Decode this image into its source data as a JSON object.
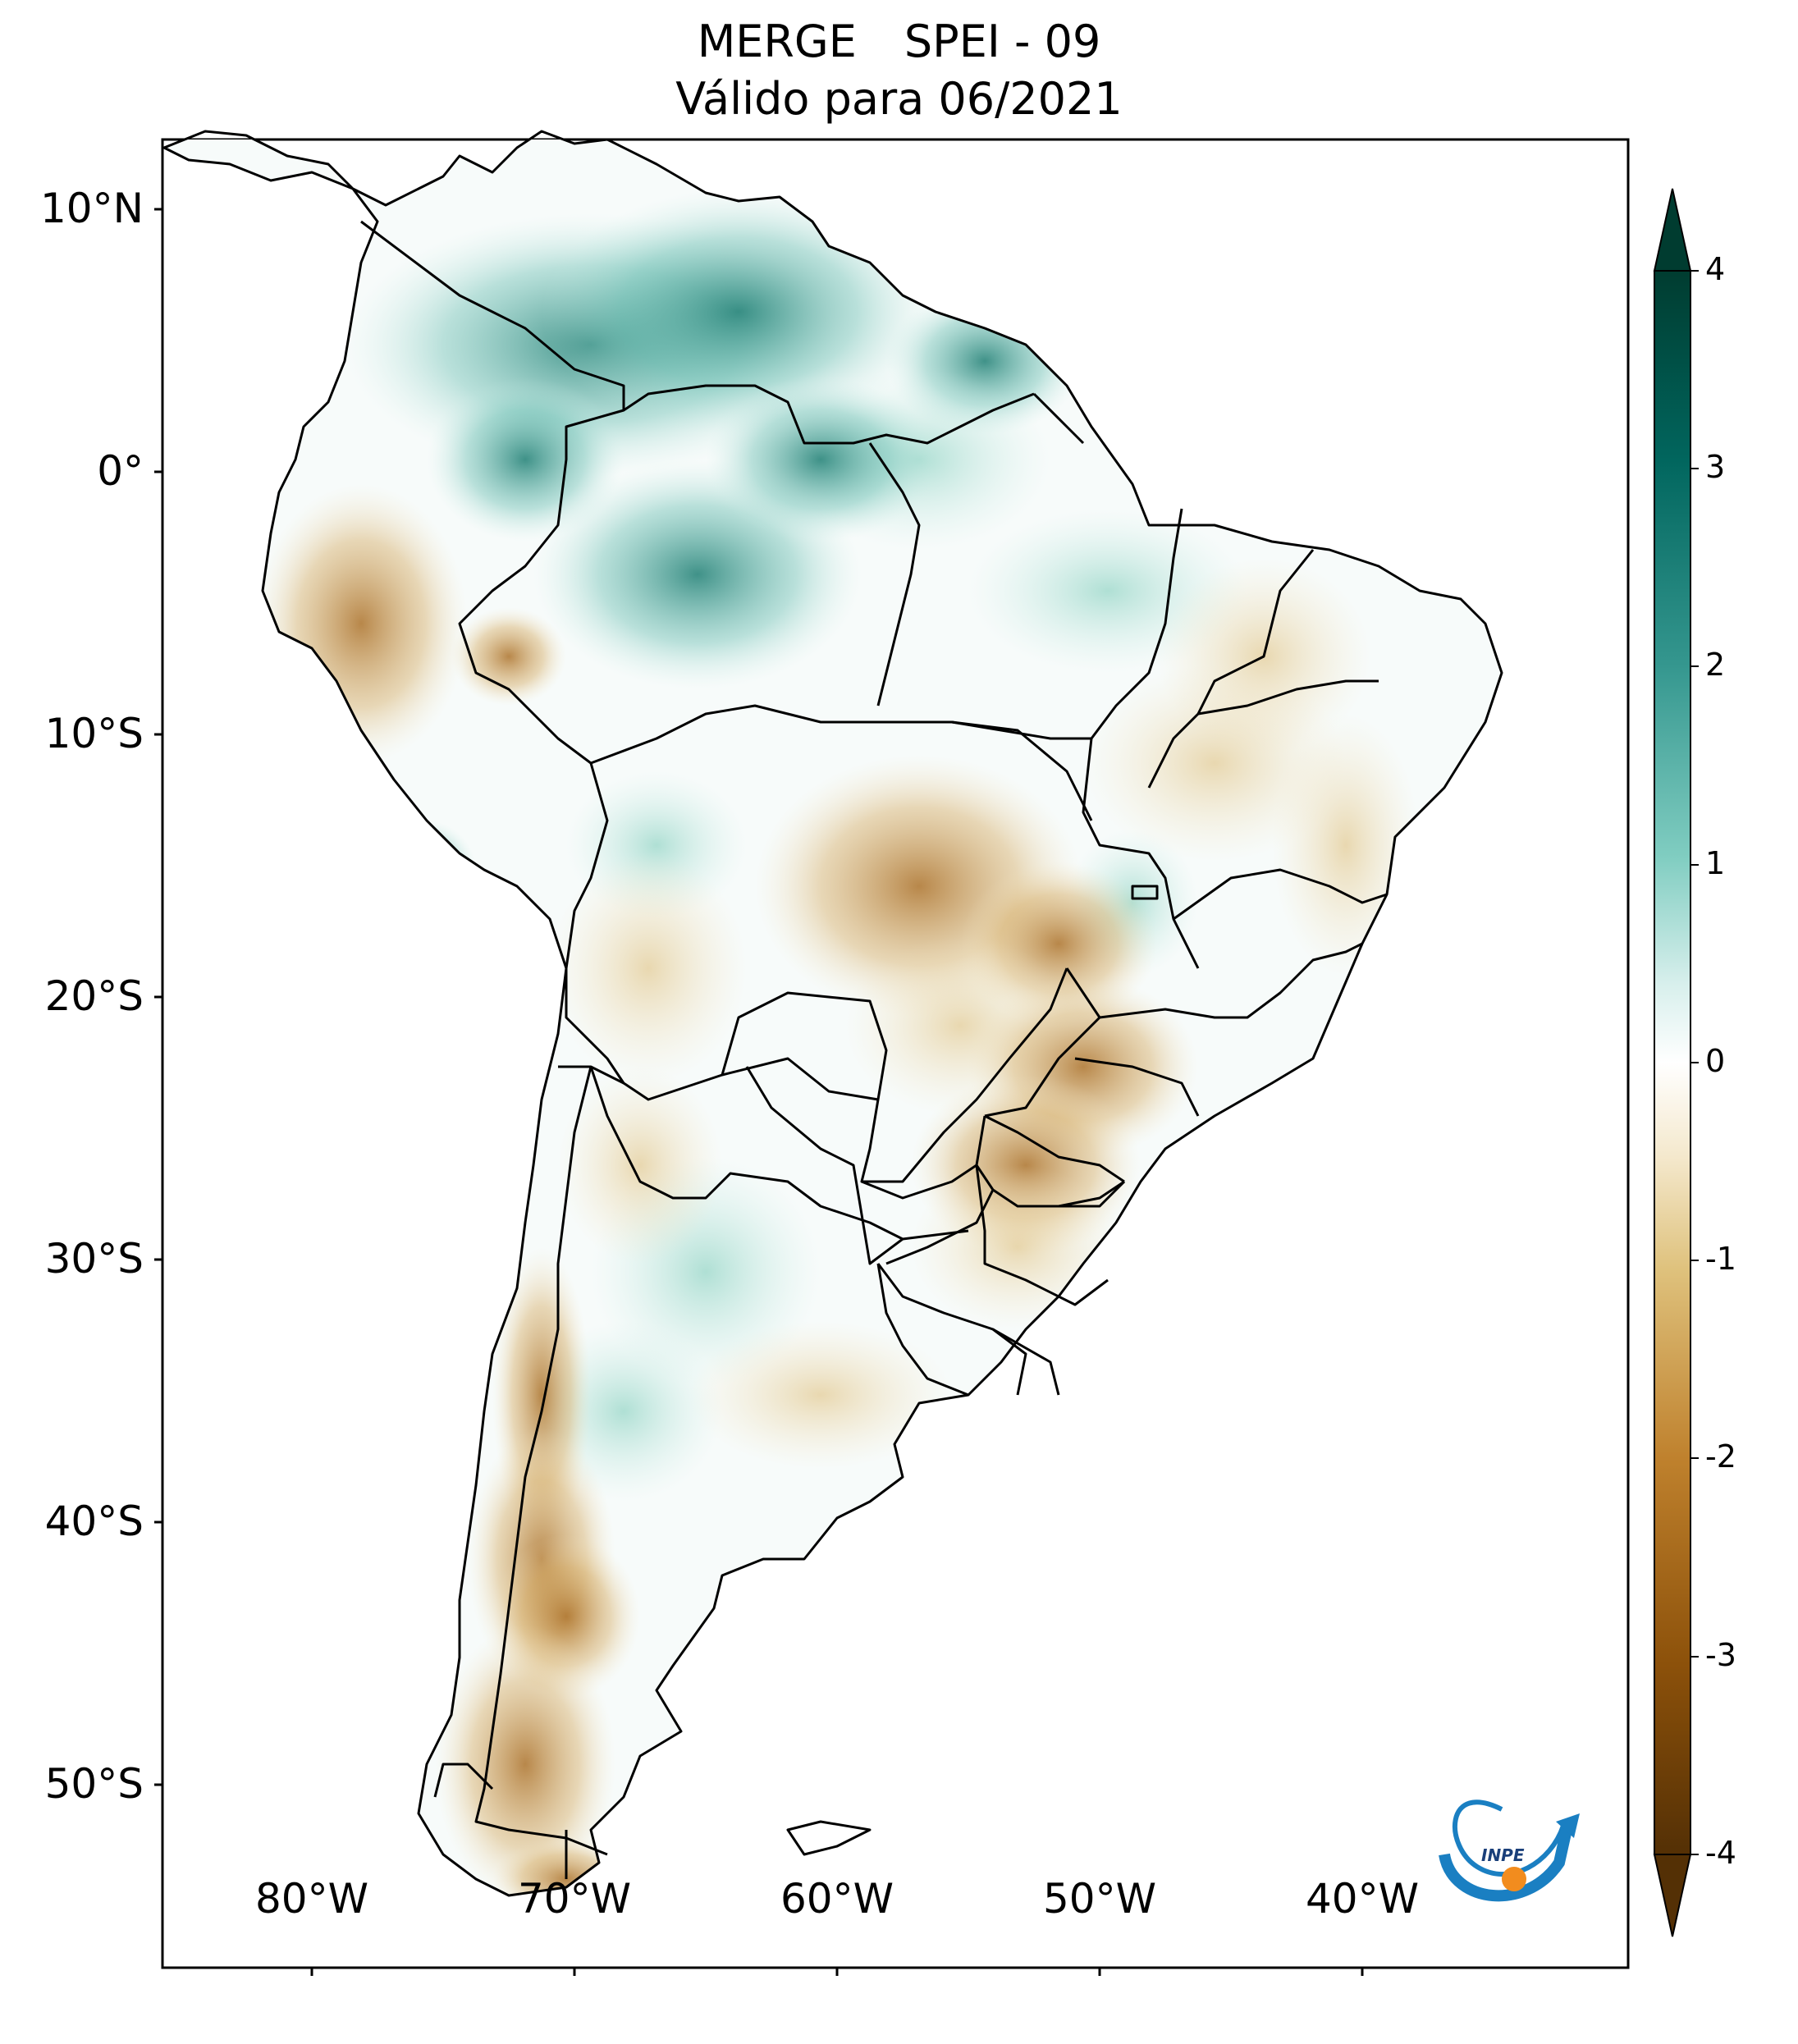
{
  "title": {
    "line1_left": "MERGE",
    "line1_right": "SPEI - 09",
    "line2": "Válido para 06/2021"
  },
  "map": {
    "region": "South America",
    "variable": "SPEI - 09",
    "lat_labels": [
      "10°N",
      "0°",
      "10°S",
      "20°S",
      "30°S",
      "40°S",
      "50°S"
    ],
    "lon_labels": [
      "80°W",
      "70°W",
      "60°W",
      "50°W",
      "40°W"
    ],
    "extent_lon": [
      -85,
      -30
    ],
    "extent_lat": [
      -58,
      13
    ],
    "logo_text": "INPE"
  },
  "colorbar": {
    "ticks": [
      "4",
      "3",
      "2",
      "1",
      "0",
      "-1",
      "-2",
      "-3",
      "-4"
    ],
    "range": [
      -4,
      4
    ],
    "colors_high": [
      "#ffffff",
      "#c9ece6",
      "#7fcdbb",
      "#3a9a8f",
      "#0c5c52",
      "#003c30"
    ],
    "colors_low": [
      "#ffffff",
      "#f2e3c0",
      "#dfc07e",
      "#bf812d",
      "#8c510a",
      "#543005"
    ]
  }
}
